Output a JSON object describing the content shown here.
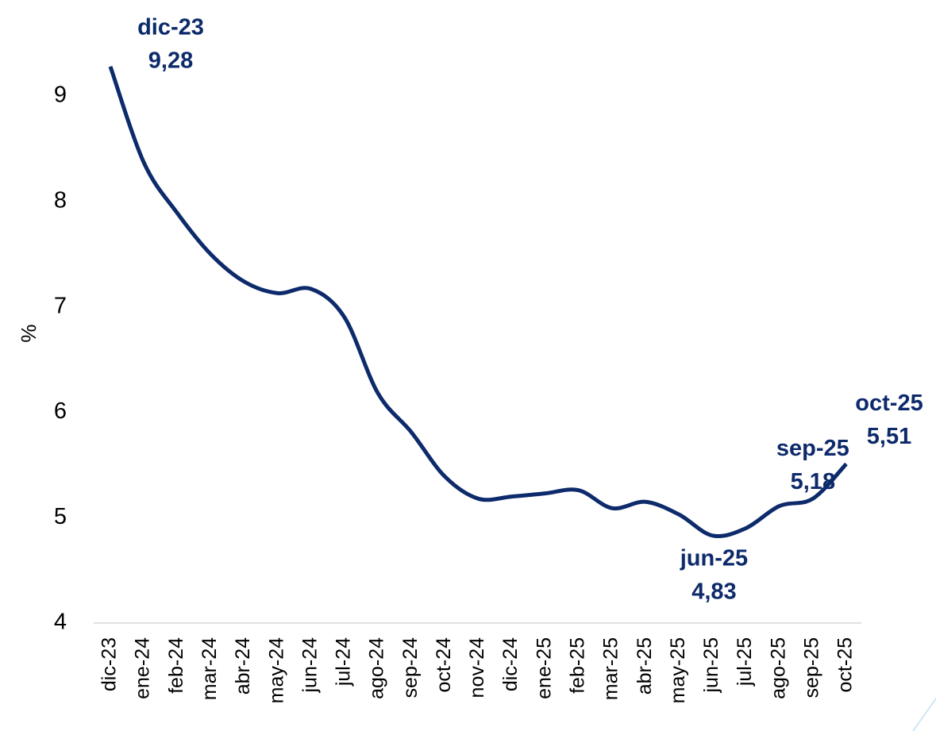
{
  "chart_data": {
    "type": "line",
    "y_label": "%",
    "categories": [
      "dic-23",
      "ene-24",
      "feb-24",
      "mar-24",
      "abr-24",
      "may-24",
      "jun-24",
      "jul-24",
      "ago-24",
      "sep-24",
      "oct-24",
      "nov-24",
      "dic-24",
      "ene-25",
      "feb-25",
      "mar-25",
      "abr-25",
      "may-25",
      "jun-25",
      "jul-25",
      "ago-25",
      "sep-25",
      "oct-25"
    ],
    "series": [
      {
        "name": "%",
        "color": "#0d2a6b",
        "values": [
          9.28,
          8.37,
          7.89,
          7.5,
          7.24,
          7.13,
          7.17,
          6.9,
          6.18,
          5.81,
          5.39,
          5.18,
          5.2,
          5.23,
          5.26,
          5.09,
          5.15,
          5.03,
          4.83,
          4.9,
          5.11,
          5.18,
          5.51
        ],
        "value_labels": [
          "9,28",
          null,
          null,
          null,
          null,
          null,
          null,
          null,
          null,
          null,
          null,
          null,
          null,
          null,
          null,
          null,
          null,
          null,
          "4,83",
          null,
          null,
          "5,18",
          "5,51"
        ]
      }
    ],
    "ylim": [
      4,
      9.5
    ],
    "yticks": [
      4,
      5,
      6,
      7,
      8,
      9
    ],
    "grid": false
  }
}
